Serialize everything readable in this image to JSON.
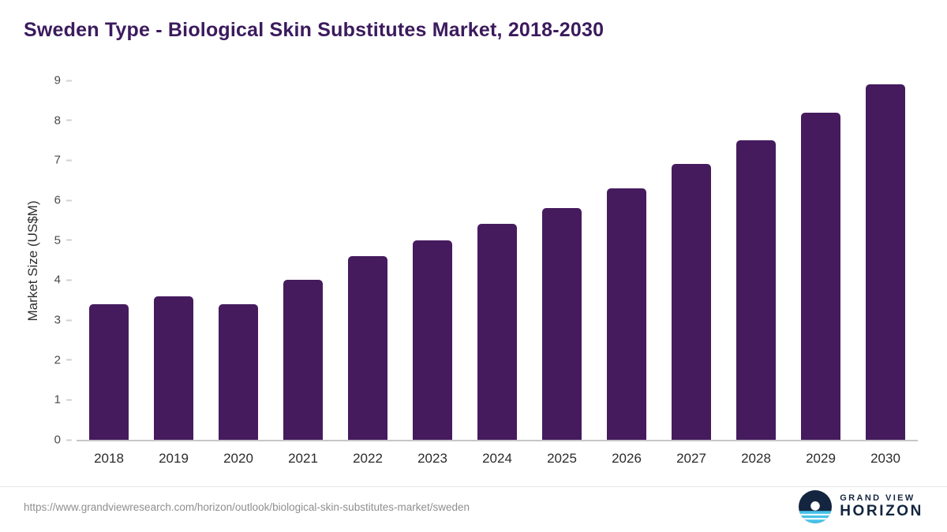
{
  "header": {
    "title": "Sweden Type - Biological Skin Substitutes Market, 2018-2030"
  },
  "footer": {
    "source_url": "https://www.grandviewresearch.com/horizon/outlook/biological-skin-substitutes-market/sweden",
    "logo_line1": "GRAND VIEW",
    "logo_line2": "HORIZON"
  },
  "colors": {
    "bar": "#451b5e",
    "title": "#3b1a5d",
    "axis_text": "#2f2f2f",
    "baseline": "#c6c6c6",
    "footer_text": "#8f8f8f",
    "logo_navy": "#13253f",
    "logo_blue": "#45c2e8"
  },
  "chart_data": {
    "type": "bar",
    "title": "Sweden Type - Biological Skin Substitutes Market, 2018-2030",
    "categories": [
      "2018",
      "2019",
      "2020",
      "2021",
      "2022",
      "2023",
      "2024",
      "2025",
      "2026",
      "2027",
      "2028",
      "2029",
      "2030"
    ],
    "values": [
      3.4,
      3.6,
      3.4,
      4.0,
      4.6,
      5.0,
      5.4,
      5.8,
      6.3,
      6.9,
      7.5,
      8.2,
      8.9
    ],
    "xlabel": "",
    "ylabel": "Market Size (US$M)",
    "ylim": [
      0,
      9
    ],
    "yticks": [
      0,
      1,
      2,
      3,
      4,
      5,
      6,
      7,
      8,
      9
    ],
    "grid": false,
    "legend": "none",
    "bar_color": "#451b5e"
  }
}
